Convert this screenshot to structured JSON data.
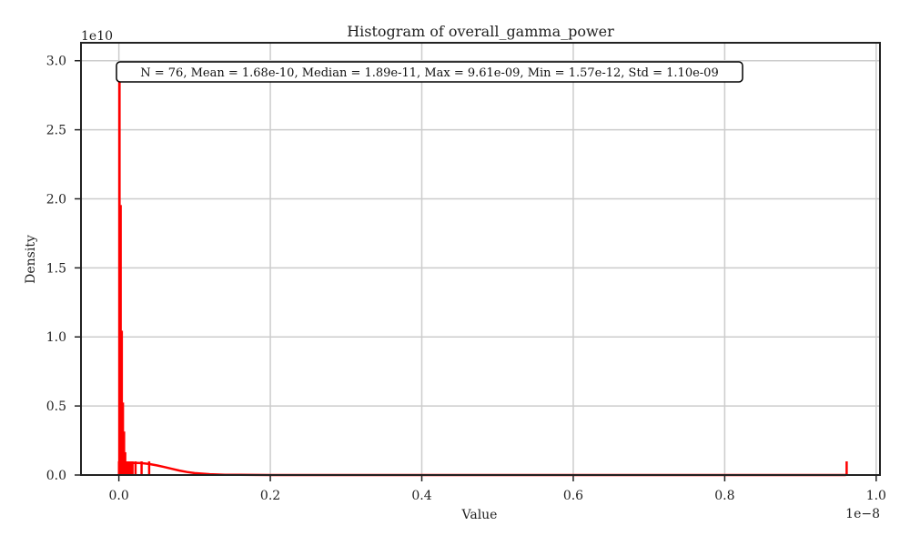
{
  "chart_data": {
    "type": "histogram",
    "title": "Histogram of overall_gamma_power",
    "xlabel": "Value",
    "ylabel": "Density",
    "x_offset_text": "1e−8",
    "y_offset_text": "1e10",
    "xlim": [
      -0.05,
      1.005
    ],
    "ylim": [
      0,
      3.13
    ],
    "x_unit_multiplier": 1e-08,
    "y_unit_multiplier": 10000000000.0,
    "xticks": [
      0.0,
      0.2,
      0.4,
      0.6,
      0.8,
      1.0
    ],
    "xtick_labels": [
      "0.0",
      "0.2",
      "0.4",
      "0.6",
      "0.8",
      "1.0"
    ],
    "yticks": [
      0.0,
      0.5,
      1.0,
      1.5,
      2.0,
      2.5,
      3.0
    ],
    "ytick_labels": [
      "0.0",
      "0.5",
      "1.0",
      "1.5",
      "2.0",
      "2.5",
      "3.0"
    ],
    "grid": true,
    "color": "#ff0000",
    "stats_text": "N = 76, Mean = 1.68e-10, Median = 1.89e-11, Max = 9.61e-09, Min = 1.57e-12, Std = 1.10e-09",
    "histogram_bins": [
      {
        "x0": 0.0,
        "x1": 0.0015,
        "density": 2.9
      },
      {
        "x0": 0.0015,
        "x1": 0.003,
        "density": 1.95
      },
      {
        "x0": 0.003,
        "x1": 0.0045,
        "density": 1.04
      },
      {
        "x0": 0.0045,
        "x1": 0.006,
        "density": 0.52
      },
      {
        "x0": 0.006,
        "x1": 0.0075,
        "density": 0.31
      },
      {
        "x0": 0.0075,
        "x1": 0.009,
        "density": 0.16
      },
      {
        "x0": 0.009,
        "x1": 0.0105,
        "density": 0.05
      }
    ],
    "kde_curve": {
      "x": [
        0.0,
        0.01,
        0.02,
        0.03,
        0.04,
        0.05,
        0.06,
        0.07,
        0.08,
        0.09,
        0.1,
        0.12,
        0.14,
        0.16,
        0.2,
        0.3,
        0.5,
        0.7,
        0.96
      ],
      "y": [
        0.085,
        0.086,
        0.088,
        0.086,
        0.08,
        0.07,
        0.058,
        0.045,
        0.032,
        0.022,
        0.014,
        0.006,
        0.002,
        0.001,
        0.0,
        0.0,
        0.0,
        0.0,
        0.0
      ]
    },
    "rug_values": [
      0.0002,
      0.0005,
      0.0008,
      0.001,
      0.0015,
      0.002,
      0.0025,
      0.003,
      0.0035,
      0.004,
      0.005,
      0.006,
      0.007,
      0.008,
      0.009,
      0.01,
      0.012,
      0.014,
      0.016,
      0.018,
      0.022,
      0.03,
      0.04,
      0.961
    ]
  }
}
